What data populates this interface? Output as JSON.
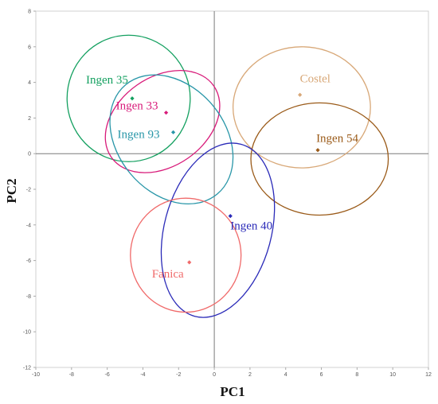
{
  "chart_data": {
    "type": "scatter",
    "title": "",
    "xlabel": "PC1",
    "ylabel": "PC2",
    "xlim": [
      -10,
      12
    ],
    "ylim": [
      -12,
      8
    ],
    "xticks": [
      -10,
      -8,
      -6,
      -4,
      -2,
      0,
      2,
      4,
      6,
      8,
      10,
      12
    ],
    "yticks": [
      -12,
      -10,
      -8,
      -6,
      -4,
      -2,
      0,
      2,
      4,
      6,
      8
    ],
    "grid": false,
    "legend": "none",
    "series": [
      {
        "name": "Ingen 35",
        "color": "#14a060",
        "centroid": [
          -4.6,
          3.1
        ],
        "ellipse": {
          "cx": -4.8,
          "cy": 3.1,
          "rx": 3.45,
          "ry": 3.55,
          "angle": 0
        }
      },
      {
        "name": "Ingen 33",
        "color": "#d81b7a",
        "centroid": [
          -2.7,
          2.3
        ],
        "ellipse": {
          "cx": -2.9,
          "cy": 1.8,
          "rx": 3.5,
          "ry": 2.5,
          "angle": -35
        }
      },
      {
        "name": "Ingen 93",
        "color": "#2896a8",
        "centroid": [
          -2.3,
          1.2
        ],
        "ellipse": {
          "cx": -2.4,
          "cy": 0.8,
          "rx": 3.0,
          "ry": 4.0,
          "angle": -40
        }
      },
      {
        "name": "Costel",
        "color": "#d8a878",
        "centroid": [
          4.8,
          3.3
        ],
        "ellipse": {
          "cx": 4.9,
          "cy": 2.6,
          "rx": 3.85,
          "ry": 3.4,
          "angle": 0
        }
      },
      {
        "name": "Ingen 54",
        "color": "#9a5a18",
        "centroid": [
          5.8,
          0.2
        ],
        "ellipse": {
          "cx": 5.9,
          "cy": -0.3,
          "rx": 3.85,
          "ry": 3.15,
          "angle": 0
        }
      },
      {
        "name": "Ingen 40",
        "color": "#2a2ab8",
        "centroid": [
          0.9,
          -3.5
        ],
        "ellipse": {
          "cx": 0.2,
          "cy": -4.3,
          "rx": 3.0,
          "ry": 5.0,
          "angle": 15
        }
      },
      {
        "name": "Fanica",
        "color": "#f06a6a",
        "centroid": [
          -1.4,
          -6.1
        ],
        "ellipse": {
          "cx": -1.6,
          "cy": -5.7,
          "rx": 3.1,
          "ry": 3.2,
          "angle": 0
        }
      }
    ]
  }
}
